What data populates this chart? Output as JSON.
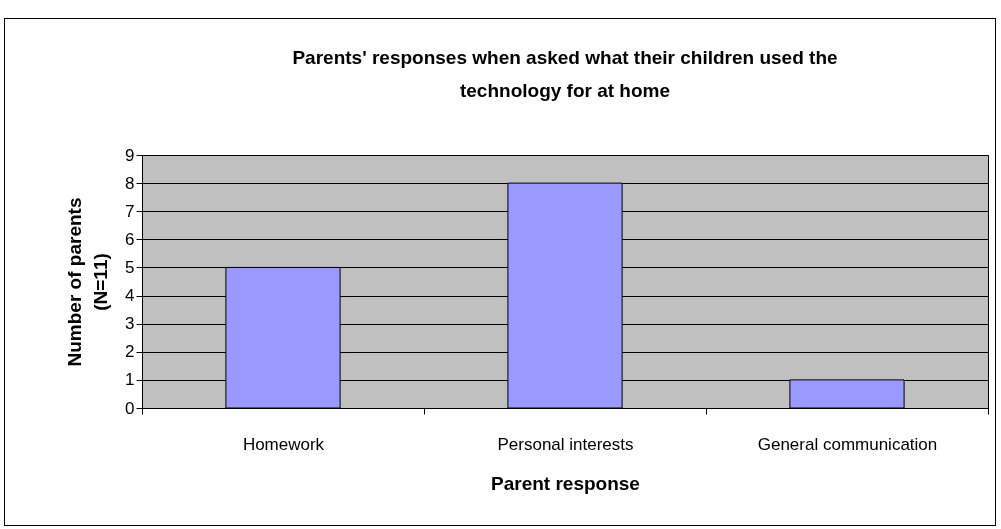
{
  "chart_data": {
    "type": "bar",
    "title": "Parents' responses when asked what their children used the technology for at home",
    "xlabel": "Parent response",
    "ylabel": "Number of parents (N=11)",
    "categories": [
      "Homework",
      "Personal interests",
      "General communication"
    ],
    "values": [
      5,
      8,
      1
    ],
    "color": "#9999ff",
    "ylim": [
      0,
      9
    ],
    "yticks": [
      0,
      1,
      2,
      3,
      4,
      5,
      6,
      7,
      8,
      9
    ],
    "grid": "y"
  }
}
